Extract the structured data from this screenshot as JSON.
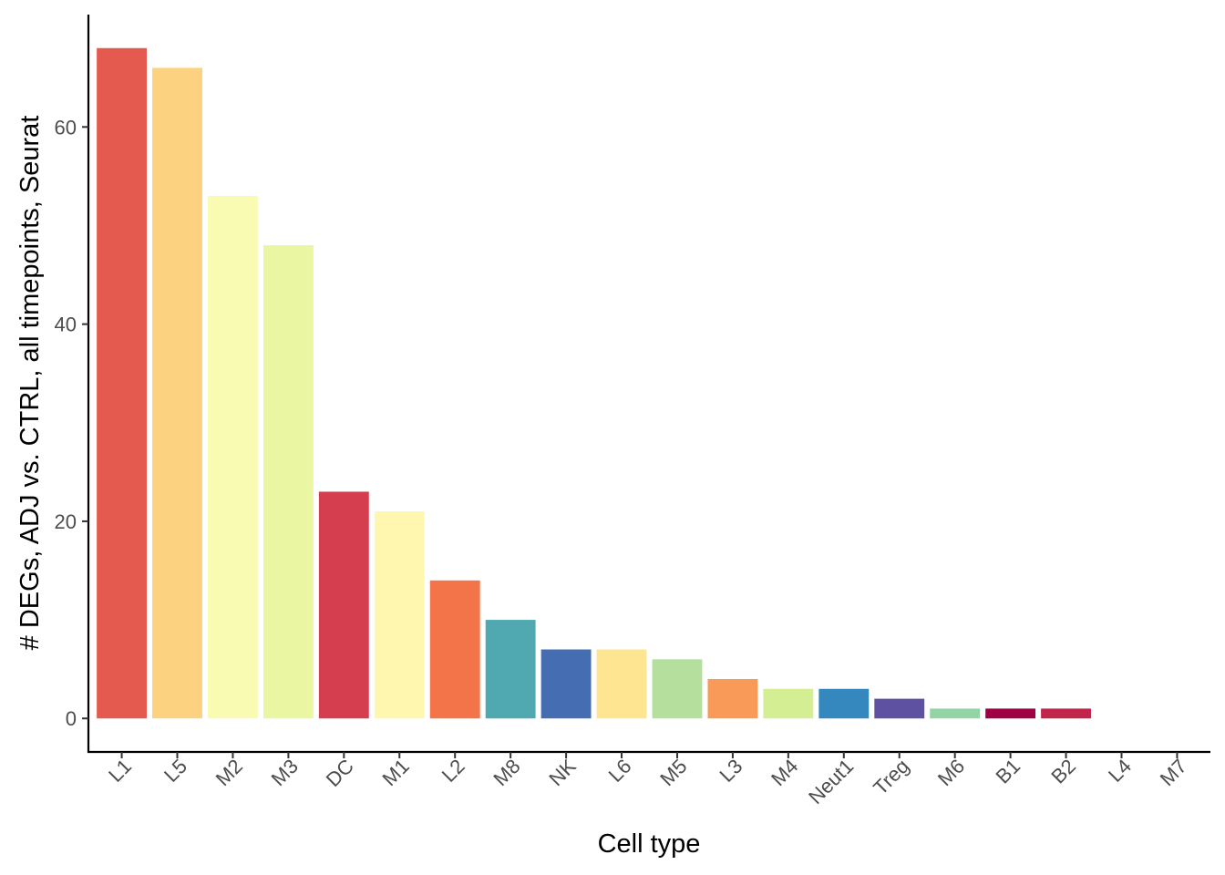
{
  "chart_data": {
    "type": "bar",
    "title": "",
    "xlabel": "Cell type",
    "ylabel": "# DEGs, ADJ vs. CTRL, all timepoints, Seurat",
    "categories": [
      "L1",
      "L5",
      "M2",
      "M3",
      "DC",
      "M1",
      "L2",
      "M8",
      "NK",
      "L6",
      "M5",
      "L3",
      "M4",
      "Neut1",
      "Treg",
      "M6",
      "B1",
      "B2",
      "L4",
      "M7"
    ],
    "values": [
      68,
      66,
      53,
      48,
      23,
      21,
      14,
      10,
      7,
      7,
      6,
      4,
      3,
      3,
      2,
      1,
      1,
      1,
      0,
      0
    ],
    "colors": [
      "#E55A4E",
      "#FCD17F",
      "#F9FBB3",
      "#EAF6A2",
      "#D53E4F",
      "#FFF7B0",
      "#F37449",
      "#50A9B0",
      "#456EB2",
      "#FEE592",
      "#B5DF9D",
      "#F99A58",
      "#D3EE93",
      "#3488BD",
      "#5E51A1",
      "#93D3A4",
      "#9E0142",
      "#C0254A",
      "#FDBE6F",
      "#76C6A8"
    ],
    "ylim": [
      -3.4,
      71.4
    ],
    "yticks": [
      0,
      20,
      40,
      60
    ],
    "grid": false,
    "legend": "none"
  }
}
